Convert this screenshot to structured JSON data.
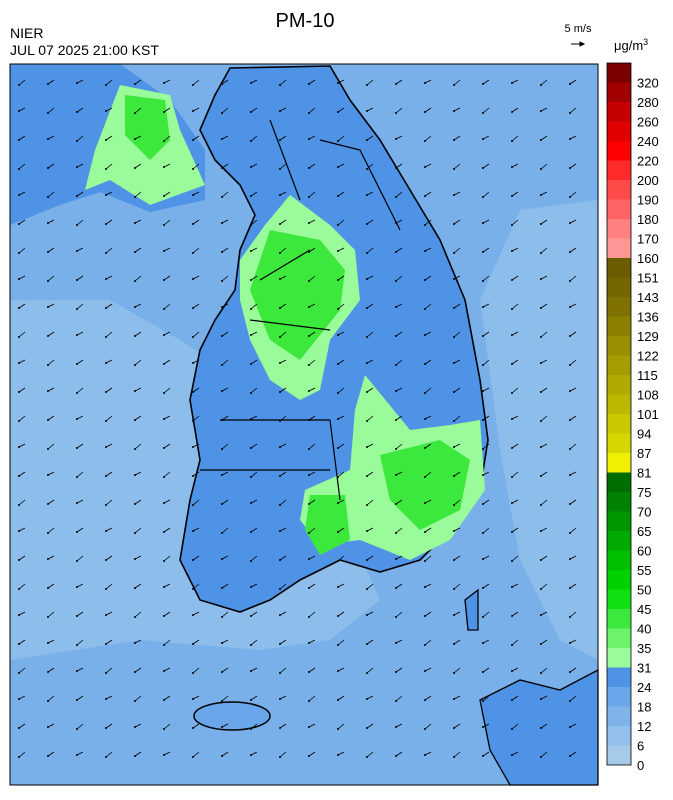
{
  "header": {
    "title": "PM-10",
    "agency": "NIER",
    "timestamp": "JUL 07 2025 21:00 KST"
  },
  "wind_scale": {
    "label": "5 m/s"
  },
  "colorbar": {
    "unit": "μg/m",
    "unit_exponent": "3",
    "levels": [
      0,
      6,
      12,
      18,
      24,
      31,
      35,
      40,
      45,
      50,
      55,
      60,
      65,
      70,
      75,
      81,
      87,
      94,
      101,
      108,
      115,
      122,
      129,
      136,
      143,
      151,
      160,
      170,
      180,
      190,
      200,
      220,
      240,
      260,
      280,
      320
    ],
    "colors": [
      "#a6cbe8",
      "#93c0ea",
      "#7fb3ea",
      "#6aa6ea",
      "#4f93e6",
      "#99fb99",
      "#6cf26c",
      "#3be83b",
      "#10e010",
      "#00d200",
      "#00be00",
      "#00aa00",
      "#009600",
      "#008200",
      "#006e00",
      "#f0f000",
      "#d6d600",
      "#c8c800",
      "#bcb800",
      "#b0aa00",
      "#a49c00",
      "#988e00",
      "#8c8000",
      "#807200",
      "#746600",
      "#6a5c00",
      "#ff9696",
      "#ff8080",
      "#ff6464",
      "#ff4a4a",
      "#ff2a2a",
      "#ff0000",
      "#e00000",
      "#c40000",
      "#a00000",
      "#7a0000"
    ]
  }
}
